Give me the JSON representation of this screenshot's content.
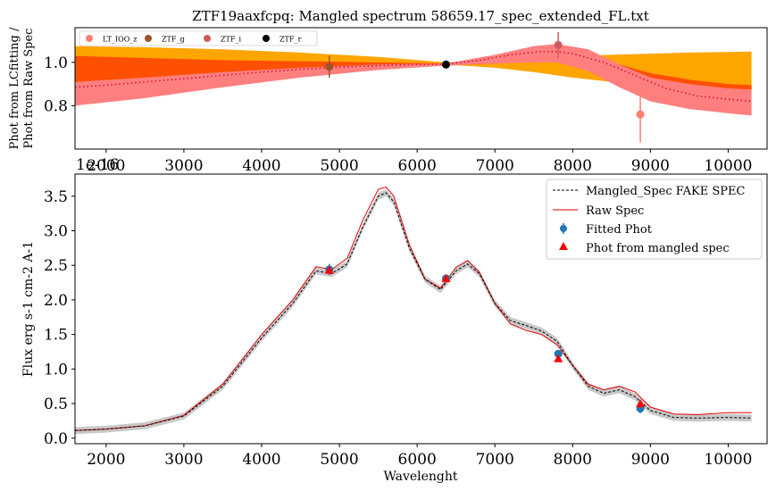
{
  "figure": {
    "title": "ZTF19aaxfcpq: Mangled spectrum 58659.17_spec_extended_FL.txt"
  },
  "chart_data": [
    {
      "type": "line",
      "title": "ZTF19aaxfcpq: Mangled spectrum 58659.17_spec_extended_FL.txt",
      "xlabel": "",
      "ylabel_lines": [
        "Phot from LCfitting /",
        "Phot from Raw Spec"
      ],
      "xlim": [
        1600,
        10500
      ],
      "ylim": [
        0.6,
        1.16
      ],
      "x_ticks": [
        2000,
        3000,
        4000,
        5000,
        6000,
        7000,
        8000,
        9000,
        10000
      ],
      "y_ticks": [
        0.8,
        1.0
      ],
      "grid": false,
      "legend": {
        "placement": "top-left",
        "ncol": 4
      },
      "legend_entries": [
        {
          "label": "LT_IOO_z",
          "color": "#fa8072"
        },
        {
          "label": "ZTF_g",
          "color": "#a0522d"
        },
        {
          "label": "ZTF_i",
          "color": "#cd5c5c"
        },
        {
          "label": "ZTF_r",
          "color": "#000000"
        }
      ],
      "bands": [
        {
          "name": "outer",
          "color": "#ffa500",
          "x": [
            1600,
            2500,
            3500,
            4500,
            5500,
            6371,
            7000,
            7500,
            8000,
            8500,
            9000,
            9500,
            10000,
            10300
          ],
          "upper": [
            1.075,
            1.07,
            1.06,
            1.045,
            1.025,
            1.0,
            1.015,
            1.025,
            1.03,
            1.035,
            1.04,
            1.045,
            1.048,
            1.05
          ],
          "lower": [
            0.87,
            0.89,
            0.92,
            0.95,
            0.98,
            0.99,
            0.975,
            0.955,
            0.93,
            0.91,
            0.89,
            0.875,
            0.865,
            0.86
          ]
        },
        {
          "name": "middle",
          "color": "#ff4f00",
          "x": [
            1600,
            2500,
            3500,
            4500,
            5500,
            6371,
            7000,
            7500,
            7800,
            8200,
            8600,
            9000,
            9500,
            10000,
            10300
          ],
          "upper": [
            1.03,
            1.02,
            1.01,
            1.005,
            1.0,
            0.995,
            1.02,
            1.045,
            1.055,
            1.04,
            0.99,
            0.95,
            0.92,
            0.9,
            0.895
          ],
          "lower": [
            0.88,
            0.9,
            0.93,
            0.955,
            0.975,
            0.985,
            0.995,
            1.005,
            1.01,
            0.98,
            0.93,
            0.89,
            0.875,
            0.87,
            0.87
          ]
        },
        {
          "name": "inner",
          "color": "#ff7f7f",
          "x": [
            1600,
            2500,
            3500,
            4500,
            5500,
            6371,
            7000,
            7500,
            7800,
            8200,
            8600,
            9000,
            9500,
            10000,
            10300
          ],
          "upper": [
            0.91,
            0.93,
            0.955,
            0.975,
            0.99,
            0.995,
            1.035,
            1.075,
            1.085,
            1.06,
            0.99,
            0.93,
            0.9,
            0.88,
            0.875
          ],
          "lower": [
            0.8,
            0.835,
            0.885,
            0.93,
            0.965,
            0.985,
            0.995,
            1.0,
            1.0,
            0.96,
            0.885,
            0.82,
            0.785,
            0.765,
            0.755
          ]
        }
      ],
      "series": [
        {
          "name": "",
          "style": "dotted",
          "color": "#dc143c",
          "x": [
            1600,
            2000,
            2500,
            3000,
            3500,
            4000,
            4500,
            5000,
            5500,
            6000,
            6371,
            6800,
            7200,
            7600,
            7800,
            8000,
            8400,
            8800,
            9200,
            9600,
            10000,
            10300
          ],
          "y": [
            0.885,
            0.895,
            0.91,
            0.925,
            0.94,
            0.955,
            0.968,
            0.978,
            0.985,
            0.99,
            0.992,
            1.01,
            1.035,
            1.05,
            1.05,
            1.04,
            1.0,
            0.94,
            0.88,
            0.845,
            0.83,
            0.82
          ]
        }
      ],
      "points": [
        {
          "label": "ZTF_g",
          "x": 4870,
          "y": 0.98,
          "err": 0.05,
          "color": "#a0522d"
        },
        {
          "label": "ZTF_r",
          "x": 6371,
          "y": 0.99,
          "err": 0.012,
          "color": "#000000"
        },
        {
          "label": "ZTF_i",
          "x": 7815,
          "y": 1.08,
          "err": 0.06,
          "color": "#cd5c5c"
        },
        {
          "label": "LT_IOO_z",
          "x": 8870,
          "y": 0.76,
          "err": 0.13,
          "color": "#fa8072"
        }
      ]
    },
    {
      "type": "line",
      "offset_text": "1e-16",
      "xlabel": "Wavelenght",
      "ylabel": "Flux erg s-1 cm-2 A-1",
      "xlim": [
        1600,
        10500
      ],
      "ylim": [
        -0.08,
        3.82
      ],
      "x_ticks": [
        2000,
        3000,
        4000,
        5000,
        6000,
        7000,
        8000,
        9000,
        10000
      ],
      "y_ticks": [
        0.0,
        0.5,
        1.0,
        1.5,
        2.0,
        2.5,
        3.0,
        3.5
      ],
      "grid": false,
      "legend": {
        "placement": "top-right"
      },
      "series": [
        {
          "name": "Mangled_Spec FAKE SPEC",
          "style": "dashed",
          "color": "#000000",
          "band_color": "#c8c8c8",
          "band_halfwidth": 0.05,
          "x": [
            1600,
            2000,
            2500,
            3000,
            3500,
            4000,
            4400,
            4700,
            4900,
            5100,
            5300,
            5500,
            5600,
            5700,
            5900,
            6100,
            6300,
            6500,
            6650,
            6800,
            7000,
            7200,
            7400,
            7600,
            7800,
            8000,
            8200,
            8400,
            8600,
            8800,
            9000,
            9300,
            9600,
            10000,
            10300
          ],
          "y": [
            0.11,
            0.13,
            0.18,
            0.32,
            0.75,
            1.45,
            1.95,
            2.42,
            2.38,
            2.52,
            3.05,
            3.5,
            3.55,
            3.42,
            2.75,
            2.3,
            2.15,
            2.42,
            2.52,
            2.38,
            1.95,
            1.7,
            1.63,
            1.55,
            1.4,
            1.05,
            0.75,
            0.65,
            0.7,
            0.6,
            0.4,
            0.3,
            0.29,
            0.3,
            0.29
          ]
        },
        {
          "name": "Raw Spec",
          "style": "solid",
          "color": "#e00000",
          "x": [
            1600,
            2000,
            2500,
            3000,
            3500,
            4000,
            4400,
            4700,
            4900,
            5100,
            5300,
            5500,
            5600,
            5700,
            5900,
            6100,
            6300,
            6500,
            6650,
            6800,
            7000,
            7200,
            7400,
            7600,
            7800,
            8000,
            8200,
            8400,
            8600,
            8800,
            9000,
            9300,
            9600,
            10000,
            10300
          ],
          "y": [
            0.11,
            0.13,
            0.18,
            0.33,
            0.78,
            1.5,
            2.0,
            2.48,
            2.44,
            2.6,
            3.15,
            3.6,
            3.63,
            3.5,
            2.8,
            2.3,
            2.17,
            2.47,
            2.57,
            2.4,
            1.95,
            1.65,
            1.56,
            1.5,
            1.35,
            1.05,
            0.78,
            0.7,
            0.75,
            0.67,
            0.45,
            0.35,
            0.34,
            0.37,
            0.37
          ]
        }
      ],
      "points": [
        {
          "label": "Fitted Phot",
          "marker": "circle",
          "color": "#1f77b4",
          "x": [
            4870,
            6371,
            7815,
            8870
          ],
          "y": [
            2.44,
            2.31,
            1.22,
            0.43
          ],
          "err": [
            0.08,
            0.04,
            0.04,
            0.07
          ]
        },
        {
          "label": "Phot from mangled spec",
          "marker": "triangle",
          "color": "#ff0000",
          "x": [
            4870,
            6371,
            7815,
            8870
          ],
          "y": [
            2.43,
            2.31,
            1.15,
            0.5
          ]
        }
      ]
    }
  ]
}
